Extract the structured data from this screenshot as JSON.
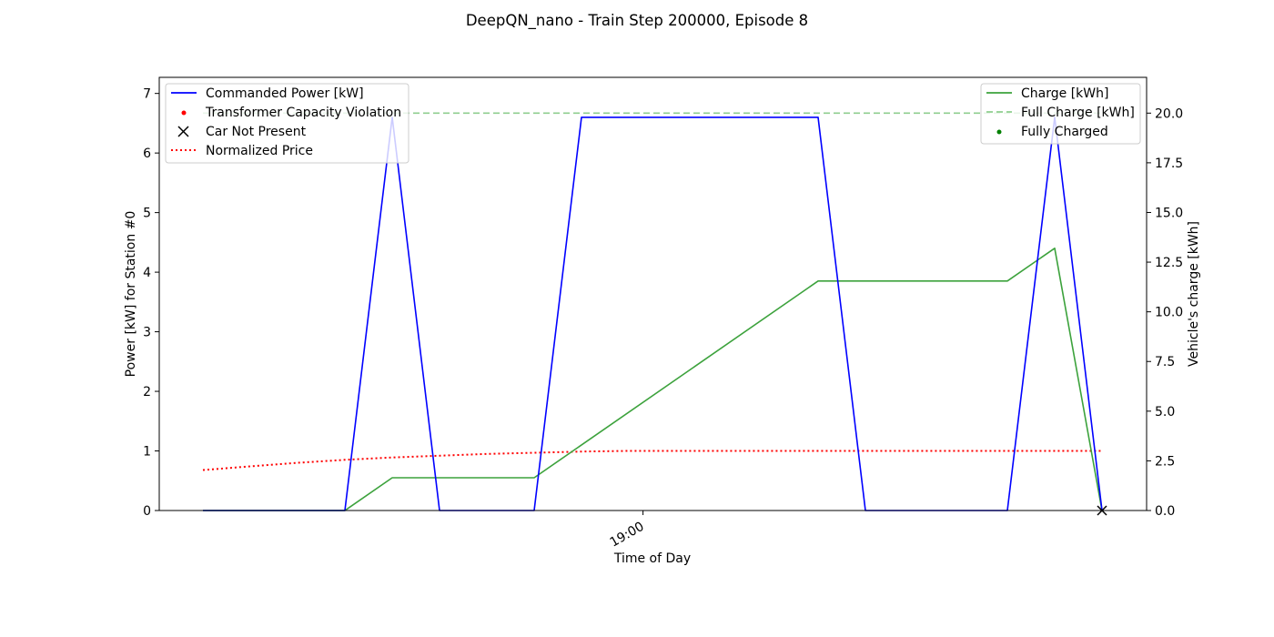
{
  "chart_data": {
    "type": "line",
    "title": "DeepQN_nano - Train Step 200000, Episode 8",
    "xlabel": "Time of Day",
    "ylabel_left": "Power [kW] for Station #0",
    "ylabel_right": "Vehicle's charge [kWh]",
    "x_range": [
      0,
      20
    ],
    "x_ticks": [
      {
        "x": 9.3,
        "label": "19:00"
      }
    ],
    "ylim_left": [
      0,
      7.27
    ],
    "ylim_right": [
      0,
      21.8
    ],
    "yticks_left": [
      0,
      1,
      2,
      3,
      4,
      5,
      6,
      7
    ],
    "yticks_right": [
      0,
      2.5,
      5,
      7.5,
      10,
      12.5,
      15,
      17.5,
      20
    ],
    "yticks_right_labels": [
      "0.0",
      "2.5",
      "5.0",
      "7.5",
      "10.0",
      "12.5",
      "15.0",
      "17.5",
      "20.0"
    ],
    "grid": false,
    "legend_left": {
      "placement": "upper-left",
      "entries": [
        {
          "name": "Commanded Power [kW]",
          "style": "line",
          "color": "#0000ff"
        },
        {
          "name": "Transformer Capacity Violation",
          "style": "dot",
          "color": "#ff0000"
        },
        {
          "name": "Car Not Present",
          "style": "x",
          "color": "#000000"
        },
        {
          "name": "Normalized Price",
          "style": "dotted",
          "color": "#ff0000"
        }
      ]
    },
    "legend_right": {
      "placement": "upper-right",
      "entries": [
        {
          "name": "Charge [kWh]",
          "style": "line",
          "color": "#3ca23c"
        },
        {
          "name": "Full Charge [kWh]",
          "style": "dashed",
          "color": "#8fce8f"
        },
        {
          "name": "Fully Charged",
          "style": "dot",
          "color": "#008000"
        }
      ]
    },
    "series": [
      {
        "name": "Commanded Power [kW]",
        "axis": "left",
        "color": "#0000ff",
        "style": "solid",
        "x": [
          0,
          1,
          2,
          3,
          4,
          5,
          6,
          7,
          8,
          9,
          10,
          11,
          12,
          13,
          14,
          15,
          16,
          17,
          18,
          19
        ],
        "values": [
          0,
          0,
          0,
          0,
          6.6,
          0,
          0,
          0,
          6.6,
          6.6,
          6.6,
          6.6,
          6.6,
          6.6,
          0,
          0,
          0,
          0,
          6.6,
          0
        ]
      },
      {
        "name": "Charge [kWh]",
        "axis": "right",
        "color": "#3ca23c",
        "style": "solid",
        "x": [
          0,
          1,
          2,
          3,
          4,
          5,
          6,
          7,
          13,
          14,
          15,
          16,
          17,
          18,
          19
        ],
        "values": [
          0,
          0,
          0,
          0,
          1.65,
          1.65,
          1.65,
          1.65,
          11.55,
          11.55,
          11.55,
          11.55,
          11.55,
          13.2,
          0
        ]
      },
      {
        "name": "Full Charge [kWh]",
        "axis": "right",
        "color": "#8fce8f",
        "style": "dashed",
        "x": [
          0,
          19
        ],
        "values": [
          20,
          20
        ]
      },
      {
        "name": "Normalized Price",
        "axis": "left",
        "color": "#ff0000",
        "style": "dotted",
        "x": [
          0,
          1,
          2,
          3,
          4,
          5,
          6,
          7,
          8,
          9,
          10,
          11,
          12,
          13,
          14,
          15,
          16,
          17,
          18,
          19
        ],
        "values": [
          0.68,
          0.74,
          0.8,
          0.85,
          0.89,
          0.92,
          0.95,
          0.97,
          0.99,
          1.0,
          1.0,
          1.0,
          1.0,
          1.0,
          1.0,
          1.0,
          1.0,
          1.0,
          1.0,
          1.0
        ]
      }
    ],
    "markers": [
      {
        "name": "Car Not Present",
        "axis": "left",
        "x": 19,
        "y": 0,
        "symbol": "x",
        "color": "#000000"
      }
    ]
  }
}
